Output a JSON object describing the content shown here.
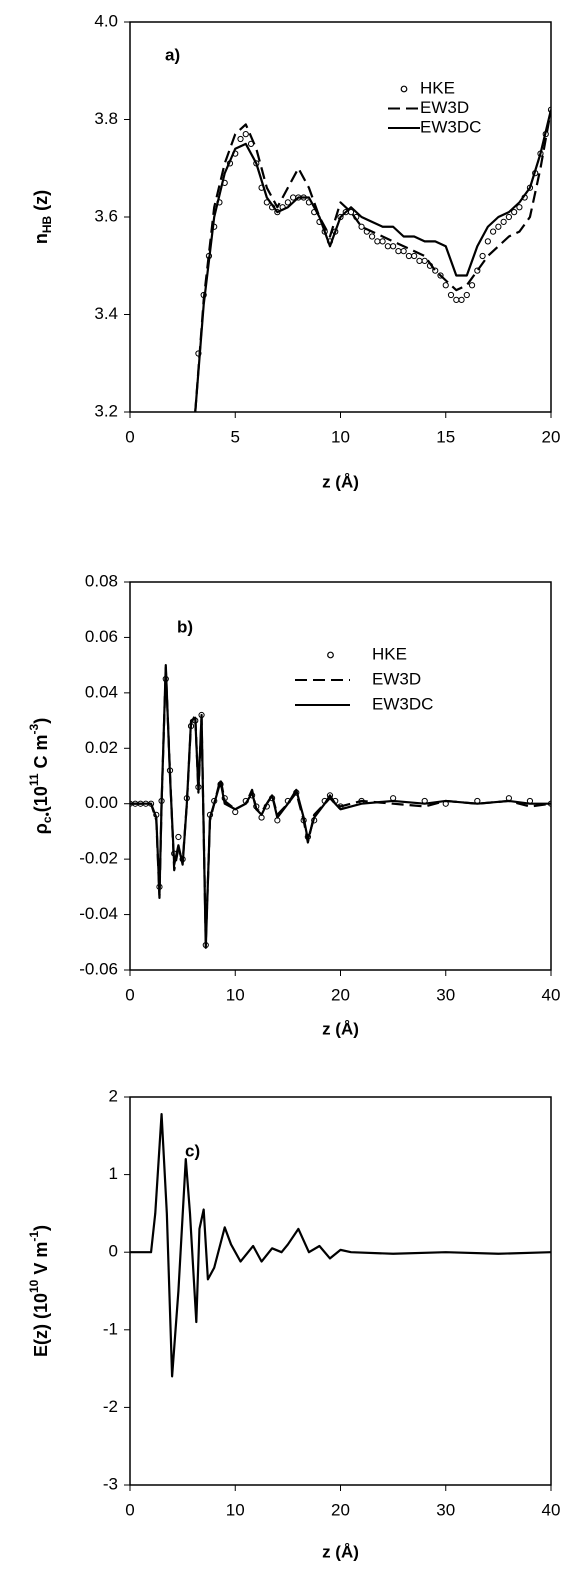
{
  "chart_data": [
    {
      "type": "line",
      "annotation": "a)",
      "xlabel": "z  (Å)",
      "ylabel": {
        "parts": [
          "n",
          "HB",
          " (z)"
        ],
        "styles": [
          "normal",
          "sub",
          "normal"
        ]
      },
      "xlim": [
        0,
        20
      ],
      "xticks": [
        0,
        5,
        10,
        15,
        20
      ],
      "ylim": [
        3.2,
        4.0
      ],
      "yticks": [
        3.2,
        3.4,
        3.6,
        3.8,
        {
          "value": 4.0,
          "label": "4.0"
        }
      ],
      "legend": "upper right",
      "x": [
        3.1,
        3.5,
        4,
        4.5,
        5,
        5.5,
        6,
        6.5,
        7,
        7.5,
        8,
        8.5,
        9,
        9.5,
        10,
        10.5,
        11,
        11.5,
        12,
        12.5,
        13,
        13.5,
        14,
        14.5,
        15,
        15.5,
        16,
        16.5,
        17,
        17.5,
        18,
        18.5,
        19,
        19.5,
        20
      ],
      "series": [
        {
          "name": "HKE",
          "style": "circle",
          "color": "#000000",
          "x": [
            3.25,
            3.5,
            3.75,
            4,
            4.25,
            4.5,
            4.75,
            5,
            5.25,
            5.5,
            5.75,
            6,
            6.25,
            6.5,
            6.75,
            7,
            7.25,
            7.5,
            7.75,
            8,
            8.25,
            8.5,
            8.75,
            9,
            9.25,
            9.5,
            9.75,
            10,
            10.25,
            10.5,
            10.75,
            11,
            11.25,
            11.5,
            11.75,
            12,
            12.25,
            12.5,
            12.75,
            13,
            13.25,
            13.5,
            13.75,
            14,
            14.25,
            14.5,
            14.75,
            15,
            15.25,
            15.5,
            15.75,
            16,
            16.25,
            16.5,
            16.75,
            17,
            17.25,
            17.5,
            17.75,
            18,
            18.25,
            18.5,
            18.75,
            19,
            19.25,
            19.5,
            19.75,
            20
          ],
          "values": [
            3.32,
            3.44,
            3.52,
            3.58,
            3.63,
            3.67,
            3.71,
            3.73,
            3.76,
            3.77,
            3.75,
            3.71,
            3.66,
            3.63,
            3.62,
            3.61,
            3.62,
            3.63,
            3.64,
            3.64,
            3.64,
            3.63,
            3.61,
            3.59,
            3.57,
            3.55,
            3.57,
            3.6,
            3.61,
            3.61,
            3.6,
            3.58,
            3.57,
            3.56,
            3.55,
            3.55,
            3.54,
            3.54,
            3.53,
            3.53,
            3.52,
            3.52,
            3.51,
            3.51,
            3.5,
            3.49,
            3.48,
            3.46,
            3.44,
            3.43,
            3.43,
            3.44,
            3.46,
            3.49,
            3.52,
            3.55,
            3.57,
            3.58,
            3.59,
            3.6,
            3.61,
            3.62,
            3.64,
            3.66,
            3.69,
            3.73,
            3.77,
            3.82
          ]
        },
        {
          "name": "EW3D",
          "style": "dashed",
          "color": "#000000",
          "values": [
            3.2,
            3.43,
            3.62,
            3.71,
            3.77,
            3.79,
            3.74,
            3.66,
            3.62,
            3.66,
            3.7,
            3.66,
            3.6,
            3.56,
            3.63,
            3.61,
            3.58,
            3.57,
            3.56,
            3.55,
            3.54,
            3.53,
            3.52,
            3.49,
            3.47,
            3.45,
            3.46,
            3.49,
            3.52,
            3.54,
            3.56,
            3.57,
            3.6,
            3.7,
            3.82
          ]
        },
        {
          "name": "EW3DC",
          "style": "solid",
          "color": "#000000",
          "values": [
            3.2,
            3.42,
            3.6,
            3.69,
            3.74,
            3.75,
            3.71,
            3.64,
            3.61,
            3.62,
            3.64,
            3.64,
            3.6,
            3.54,
            3.6,
            3.62,
            3.6,
            3.59,
            3.58,
            3.58,
            3.56,
            3.56,
            3.55,
            3.55,
            3.54,
            3.48,
            3.48,
            3.54,
            3.58,
            3.6,
            3.61,
            3.63,
            3.66,
            3.73,
            3.82
          ]
        }
      ]
    },
    {
      "type": "line",
      "annotation": "b)",
      "xlabel": "z  (Å)",
      "ylabel": {
        "parts": [
          "ρ",
          "c•",
          "(10",
          "11",
          " C m",
          "-3",
          ")"
        ],
        "styles": [
          "normal",
          "sub",
          "normal",
          "sup",
          "normal",
          "sup",
          "normal"
        ]
      },
      "xlim": [
        0,
        40
      ],
      "xticks": [
        0,
        10,
        20,
        30,
        40
      ],
      "ylim": [
        -0.06,
        0.08
      ],
      "yticks": [
        -0.06,
        -0.04,
        -0.02,
        {
          "value": 0,
          "label": "0.00"
        },
        0.02,
        0.04,
        0.06,
        0.08
      ],
      "legend": "upper right",
      "x": [
        0,
        0.5,
        1,
        1.5,
        2,
        2.5,
        2.8,
        3.0,
        3.4,
        3.8,
        4.2,
        4.6,
        5.0,
        5.4,
        5.8,
        6.2,
        6.5,
        6.8,
        7.2,
        7.6,
        8.0,
        8.6,
        9.0,
        10,
        11,
        11.6,
        12,
        12.5,
        13,
        13.5,
        14,
        15,
        15.8,
        16.5,
        16.9,
        17.5,
        18.5,
        19,
        19.5,
        20,
        22,
        25,
        28,
        30,
        33,
        36,
        38,
        40
      ],
      "series": [
        {
          "name": "HKE",
          "style": "circle",
          "color": "#000000",
          "values": [
            0,
            0,
            0,
            0,
            0,
            -0.004,
            -0.03,
            0.001,
            0.045,
            0.012,
            -0.018,
            -0.012,
            -0.02,
            0.002,
            0.028,
            0.03,
            0.006,
            0.032,
            -0.051,
            -0.004,
            0.001,
            0.007,
            0.002,
            -0.003,
            0.001,
            0.003,
            -0.001,
            -0.005,
            -0.001,
            0.002,
            -0.006,
            0.001,
            0.004,
            -0.006,
            -0.012,
            -0.006,
            0.001,
            0.003,
            0.001,
            -0.001,
            0.001,
            0.002,
            0.001,
            0,
            0.001,
            0.002,
            0.001,
            0
          ]
        },
        {
          "name": "EW3D",
          "style": "dashed",
          "color": "#000000",
          "values": [
            0,
            0,
            0,
            0,
            0,
            -0.006,
            -0.034,
            0,
            0.049,
            0.011,
            -0.024,
            -0.016,
            -0.021,
            0,
            0.029,
            0.032,
            0.004,
            0.031,
            -0.05,
            -0.006,
            0,
            0.009,
            0.001,
            -0.002,
            0,
            0.005,
            -0.002,
            -0.003,
            0,
            0.003,
            -0.004,
            0,
            0.004,
            -0.006,
            -0.014,
            -0.004,
            0,
            0.002,
            0,
            -0.001,
            0.001,
            0,
            -0.001,
            0.001,
            0,
            0.001,
            -0.001,
            0
          ]
        },
        {
          "name": "EW3DC",
          "style": "solid",
          "color": "#000000",
          "values": [
            0,
            0,
            0,
            0,
            0,
            -0.005,
            -0.033,
            0,
            0.05,
            0.01,
            -0.022,
            -0.015,
            -0.022,
            0,
            0.03,
            0.031,
            0.005,
            0.032,
            -0.052,
            -0.005,
            0,
            0.008,
            0,
            -0.002,
            0,
            0.004,
            -0.002,
            -0.004,
            0,
            0.003,
            -0.005,
            0,
            0.005,
            -0.005,
            -0.013,
            -0.005,
            0,
            0.003,
            0,
            -0.002,
            0,
            0.001,
            0,
            0.001,
            0,
            0.001,
            0,
            0
          ]
        }
      ]
    },
    {
      "type": "line",
      "annotation": "c)",
      "xlabel": "z  (Å)",
      "ylabel": {
        "parts": [
          "E(z) (10",
          "10",
          " V m",
          "-1",
          ")"
        ],
        "styles": [
          "normal",
          "sup",
          "normal",
          "sup",
          "normal"
        ]
      },
      "xlim": [
        0,
        40
      ],
      "xticks": [
        0,
        10,
        20,
        30,
        40
      ],
      "ylim": [
        -3,
        2
      ],
      "yticks": [
        -3,
        -2,
        -1,
        0,
        1,
        2
      ],
      "x": [
        0,
        2,
        2.4,
        3,
        3.5,
        4,
        4.6,
        5.3,
        5.7,
        6.3,
        6.6,
        7,
        7.4,
        8,
        9,
        9.6,
        10.5,
        11.7,
        12.5,
        13.5,
        14.4,
        15,
        16,
        17,
        18,
        19,
        20,
        21,
        25,
        30,
        35,
        40
      ],
      "series": [
        {
          "style": "solid",
          "color": "#000000",
          "values": [
            0,
            0,
            0.5,
            1.78,
            0.5,
            -1.6,
            -0.5,
            1.2,
            0.5,
            -0.9,
            0.3,
            0.55,
            -0.35,
            -0.2,
            0.32,
            0.1,
            -0.12,
            0.08,
            -0.12,
            0.05,
            0,
            0.1,
            0.3,
            0,
            0.08,
            -0.08,
            0.03,
            0,
            -0.02,
            0,
            -0.02,
            0
          ]
        }
      ]
    }
  ]
}
